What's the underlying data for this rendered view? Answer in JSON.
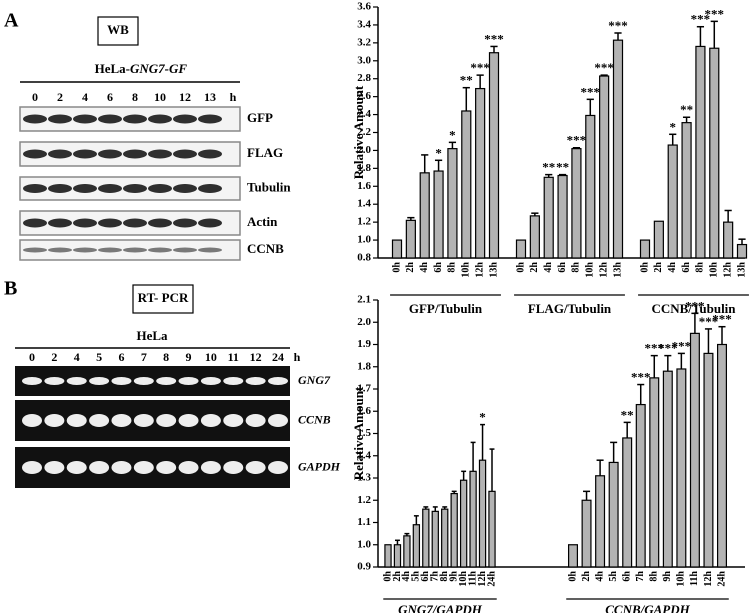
{
  "panel_a": {
    "label": "A",
    "method": "WB",
    "cell_line": "HeLa-",
    "construct": "GNG7-GF",
    "time_labels": [
      "0",
      "2",
      "4",
      "6",
      "8",
      "10",
      "12",
      "13"
    ],
    "time_unit": "h",
    "blot_rows": [
      "GFP",
      "FLAG",
      "Tubulin",
      "Actin",
      "CCNB"
    ]
  },
  "panel_b": {
    "label": "B",
    "method": "RT- PCR",
    "cell_line": "HeLa",
    "time_labels": [
      "0",
      "2",
      "4",
      "5",
      "6",
      "7",
      "8",
      "9",
      "10",
      "11",
      "12",
      "24"
    ],
    "time_unit": "h",
    "gel_rows": [
      "GNG7",
      "CCNB",
      "GAPDH"
    ]
  },
  "chart_data": [
    {
      "type": "bar",
      "ylabel": "Relative Amount",
      "color": "#b3b3b3",
      "group_label_style": "normal",
      "ylim": [
        0.8,
        3.6
      ],
      "yticks": [
        0.8,
        {
          "value": 1,
          "label": "1.0"
        },
        1.2,
        1.4,
        1.6,
        1.8,
        {
          "value": 2,
          "label": "2.0"
        },
        2.2,
        2.4,
        2.6,
        2.8,
        {
          "value": 3,
          "label": "3.0"
        },
        3.2,
        3.4,
        3.6
      ],
      "groups": [
        {
          "name": "GFP/Tubulin",
          "categories": [
            "0h",
            "2h",
            "4h",
            "6h",
            "8h",
            "10h",
            "12h",
            "13h"
          ],
          "values": [
            1.0,
            1.22,
            1.75,
            1.77,
            2.02,
            2.44,
            2.69,
            3.09
          ],
          "errors": [
            0,
            0.03,
            0.2,
            0.12,
            0.07,
            0.26,
            0.15,
            0.07
          ],
          "significance": [
            null,
            null,
            null,
            "*",
            "*",
            "**",
            "***",
            "***"
          ]
        },
        {
          "name": "FLAG/Tubulin",
          "categories": [
            "0h",
            "2h",
            "4h",
            "6h",
            "8h",
            "10h",
            "12h",
            "13h"
          ],
          "values": [
            1.0,
            1.27,
            1.7,
            1.72,
            2.02,
            2.39,
            2.83,
            3.23
          ],
          "errors": [
            0,
            0.03,
            0.03,
            0.01,
            0.01,
            0.18,
            0.01,
            0.08
          ],
          "significance": [
            null,
            null,
            "**",
            "**",
            "***",
            "***",
            "***",
            "***"
          ]
        },
        {
          "name": "CCNB/Tubulin",
          "categories": [
            "0h",
            "2h",
            "4h",
            "6h",
            "8h",
            "10h",
            "12h",
            "13h"
          ],
          "values": [
            1.0,
            1.21,
            2.06,
            2.31,
            3.16,
            3.14,
            1.2,
            0.95
          ],
          "errors": [
            0,
            0,
            0.12,
            0.06,
            0.22,
            0.3,
            0.13,
            0.06
          ],
          "significance": [
            null,
            null,
            "*",
            "**",
            "***",
            "***",
            null,
            null
          ]
        }
      ]
    },
    {
      "type": "bar",
      "ylabel": "Relative Amount",
      "color": "#b3b3b3",
      "group_label_style": "italic",
      "ylim": [
        0.9,
        2.1
      ],
      "yticks": [
        0.9,
        {
          "value": 1,
          "label": "1.0"
        },
        1.1,
        1.2,
        1.3,
        1.4,
        1.5,
        1.6,
        1.7,
        1.8,
        1.9,
        {
          "value": 2,
          "label": "2.0"
        },
        2.1
      ],
      "groups": [
        {
          "name": "GNG7/GAPDH",
          "categories": [
            "0h",
            "2h",
            "4h",
            "5h",
            "6h",
            "7h",
            "8h",
            "9h",
            "10h",
            "11h",
            "12h",
            "24h"
          ],
          "values": [
            1.0,
            1.0,
            1.04,
            1.09,
            1.16,
            1.15,
            1.16,
            1.23,
            1.29,
            1.33,
            1.38,
            1.24
          ],
          "errors": [
            0,
            0.02,
            0.01,
            0.04,
            0.01,
            0.02,
            0.01,
            0.01,
            0.04,
            0.13,
            0.16,
            0.19
          ],
          "significance": [
            null,
            null,
            null,
            null,
            null,
            null,
            null,
            null,
            null,
            null,
            "*",
            null
          ]
        },
        {
          "name": "CCNB/GAPDH",
          "categories": [
            "0h",
            "2h",
            "4h",
            "5h",
            "6h",
            "7h",
            "8h",
            "9h",
            "10h",
            "11h",
            "12h",
            "24h"
          ],
          "values": [
            1.0,
            1.2,
            1.31,
            1.37,
            1.48,
            1.63,
            1.75,
            1.78,
            1.79,
            1.95,
            1.86,
            1.9
          ],
          "errors": [
            0,
            0.04,
            0.07,
            0.09,
            0.07,
            0.09,
            0.1,
            0.07,
            0.07,
            0.09,
            0.11,
            0.08
          ],
          "significance": [
            null,
            null,
            null,
            null,
            "**",
            "***",
            "***",
            "***",
            "***",
            "***",
            "***",
            "***"
          ]
        }
      ]
    }
  ]
}
